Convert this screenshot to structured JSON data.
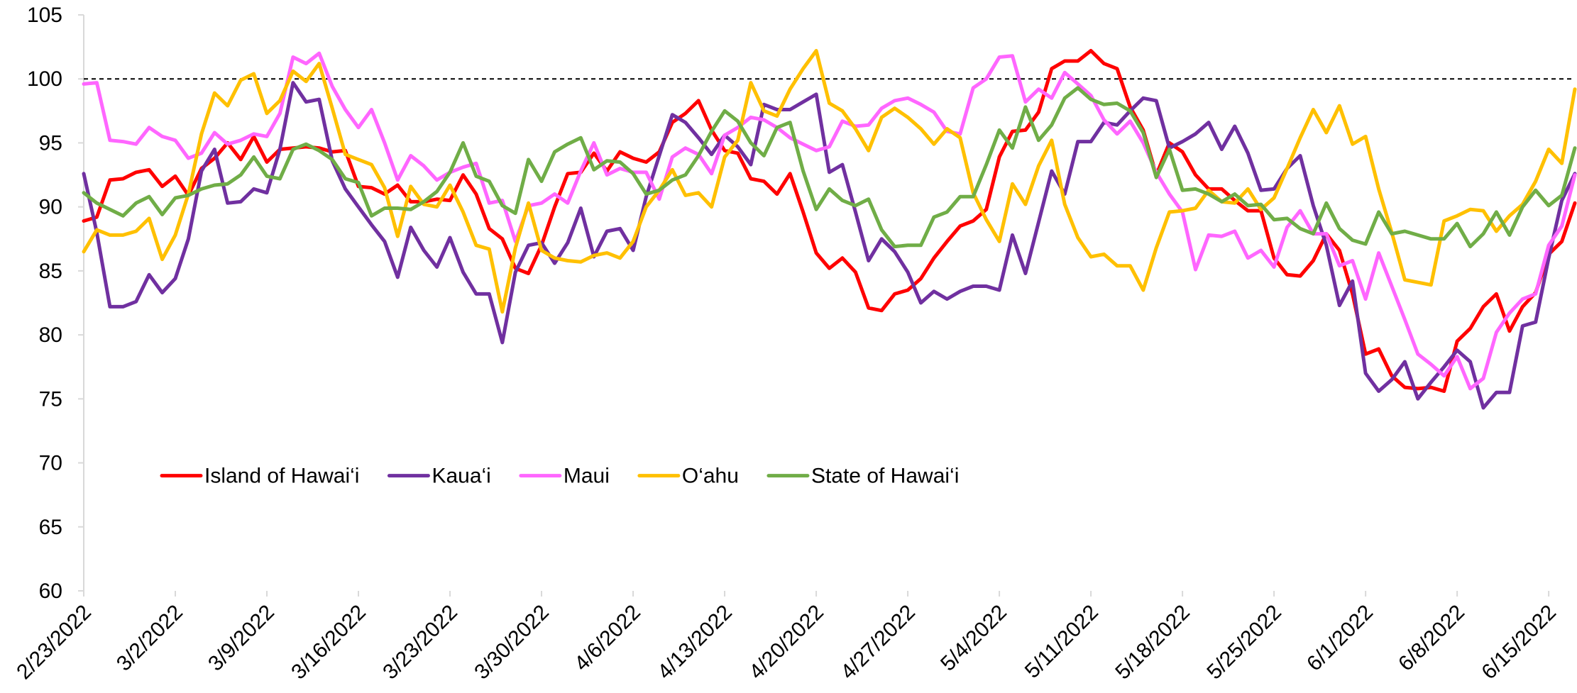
{
  "chart_data": {
    "type": "line",
    "categories": [
      "2/23/2022",
      null,
      null,
      null,
      null,
      null,
      null,
      "3/2/2022",
      null,
      null,
      null,
      null,
      null,
      null,
      "3/9/2022",
      null,
      null,
      null,
      null,
      null,
      null,
      "3/16/2022",
      null,
      null,
      null,
      null,
      null,
      null,
      "3/23/2022",
      null,
      null,
      null,
      null,
      null,
      null,
      "3/30/2022",
      null,
      null,
      null,
      null,
      null,
      null,
      "4/6/2022",
      null,
      null,
      null,
      null,
      null,
      null,
      "4/13/2022",
      null,
      null,
      null,
      null,
      null,
      null,
      "4/20/2022",
      null,
      null,
      null,
      null,
      null,
      null,
      "4/27/2022",
      null,
      null,
      null,
      null,
      null,
      null,
      "5/4/2022",
      null,
      null,
      null,
      null,
      null,
      null,
      "5/11/2022",
      null,
      null,
      null,
      null,
      null,
      null,
      "5/18/2022",
      null,
      null,
      null,
      null,
      null,
      null,
      "5/25/2022",
      null,
      null,
      null,
      null,
      null,
      null,
      "6/1/2022",
      null,
      null,
      null,
      null,
      null,
      null,
      "6/8/2022",
      null,
      null,
      null,
      null,
      null,
      null,
      "6/15/2022",
      null,
      null
    ],
    "series": [
      {
        "name": "Island of Hawai‘i",
        "color": "#ff0000",
        "values": [
          88.9,
          89.2,
          92.1,
          92.2,
          92.7,
          92.9,
          91.6,
          92.4,
          90.9,
          93.0,
          93.8,
          95.0,
          93.7,
          95.5,
          93.5,
          94.5,
          94.6,
          94.7,
          94.6,
          94.3,
          94.4,
          91.6,
          91.5,
          91.0,
          91.7,
          90.4,
          90.4,
          90.6,
          90.5,
          92.5,
          91.0,
          88.3,
          87.5,
          85.2,
          84.8,
          87.0,
          90.0,
          92.6,
          92.7,
          94.2,
          92.8,
          94.3,
          93.8,
          93.5,
          94.3,
          96.6,
          97.3,
          98.3,
          96.0,
          94.4,
          94.2,
          92.2,
          92.0,
          91.0,
          92.6,
          89.6,
          86.4,
          85.2,
          86.0,
          84.9,
          82.1,
          81.9,
          83.2,
          83.5,
          84.4,
          86.0,
          87.3,
          88.5,
          88.9,
          89.8,
          93.9,
          95.9,
          96.0,
          97.4,
          100.8,
          101.4,
          101.4,
          102.2,
          101.2,
          100.8,
          97.8,
          96.0,
          92.5,
          95.0,
          94.3,
          92.5,
          91.4,
          91.4,
          90.5,
          89.7,
          89.7,
          86.0,
          84.7,
          84.6,
          85.8,
          87.9,
          86.6,
          83.2,
          78.5,
          78.9,
          76.8,
          75.9,
          75.8,
          75.9,
          75.6,
          79.5,
          80.5,
          82.2,
          83.2,
          80.3,
          82.2,
          83.3,
          86.3,
          87.3,
          90.3
        ]
      },
      {
        "name": "Kaua‘i",
        "color": "#7030a0",
        "values": [
          92.6,
          88.0,
          82.2,
          82.2,
          82.6,
          84.7,
          83.3,
          84.4,
          87.5,
          92.8,
          94.5,
          90.3,
          90.4,
          91.4,
          91.1,
          94.5,
          99.7,
          98.2,
          98.4,
          93.6,
          91.4,
          90.0,
          88.6,
          87.3,
          84.5,
          88.4,
          86.6,
          85.3,
          87.6,
          84.9,
          83.2,
          83.2,
          79.4,
          84.9,
          87.0,
          87.2,
          85.6,
          87.2,
          89.9,
          86.1,
          88.1,
          88.3,
          86.6,
          90.8,
          94.0,
          97.2,
          96.6,
          95.4,
          94.1,
          95.6,
          94.7,
          93.3,
          98.0,
          97.6,
          97.6,
          98.2,
          98.8,
          92.7,
          93.3,
          89.6,
          85.8,
          87.5,
          86.5,
          84.9,
          82.5,
          83.4,
          82.8,
          83.4,
          83.8,
          83.8,
          83.5,
          87.8,
          84.8,
          88.8,
          92.8,
          91.0,
          95.1,
          95.1,
          96.6,
          96.4,
          97.5,
          98.5,
          98.3,
          94.6,
          95.1,
          95.7,
          96.6,
          94.5,
          96.3,
          94.2,
          91.3,
          91.4,
          93.0,
          94.0,
          90.1,
          87.0,
          82.3,
          84.2,
          77.0,
          75.6,
          76.5,
          77.9,
          75.0,
          76.3,
          77.5,
          78.8,
          77.9,
          74.3,
          75.5,
          75.5,
          80.7,
          81.0,
          86.0,
          90.5,
          92.6
        ]
      },
      {
        "name": "Maui",
        "color": "#ff66ff",
        "values": [
          99.6,
          99.7,
          95.2,
          95.1,
          94.9,
          96.2,
          95.5,
          95.2,
          93.8,
          94.2,
          95.8,
          94.9,
          95.2,
          95.7,
          95.5,
          97.3,
          101.7,
          101.2,
          102.0,
          99.4,
          97.6,
          96.2,
          97.6,
          95.0,
          92.1,
          94.0,
          93.2,
          92.1,
          92.7,
          93.1,
          93.4,
          90.3,
          90.5,
          87.3,
          90.1,
          90.3,
          91.0,
          90.3,
          92.8,
          95.0,
          92.5,
          93.0,
          92.7,
          92.7,
          90.6,
          93.9,
          94.6,
          94.1,
          92.6,
          95.6,
          96.2,
          97.0,
          96.8,
          96.2,
          95.4,
          94.9,
          94.4,
          94.7,
          96.7,
          96.3,
          96.4,
          97.7,
          98.3,
          98.5,
          98.0,
          97.4,
          95.9,
          95.7,
          99.3,
          100.0,
          101.7,
          101.8,
          98.2,
          99.2,
          98.5,
          100.5,
          99.6,
          98.7,
          96.8,
          95.7,
          96.7,
          95.0,
          92.7,
          91.0,
          89.6,
          85.1,
          87.8,
          87.7,
          88.1,
          86.0,
          86.6,
          85.3,
          88.4,
          89.7,
          87.9,
          87.9,
          85.4,
          85.8,
          82.8,
          86.4,
          83.8,
          81.2,
          78.5,
          77.7,
          76.8,
          78.3,
          75.8,
          76.6,
          80.2,
          81.7,
          82.8,
          83.2,
          87.0,
          88.5,
          92.5
        ]
      },
      {
        "name": "O‘ahu",
        "color": "#ffc000",
        "values": [
          86.5,
          88.2,
          87.8,
          87.8,
          88.1,
          89.1,
          85.9,
          87.8,
          91.0,
          95.7,
          98.9,
          97.9,
          99.9,
          100.4,
          97.3,
          98.3,
          100.6,
          99.8,
          101.2,
          97.7,
          94.1,
          93.7,
          93.3,
          91.5,
          87.7,
          91.6,
          90.2,
          90.0,
          91.7,
          89.6,
          87.0,
          86.7,
          81.8,
          86.8,
          90.3,
          86.6,
          86.0,
          85.8,
          85.7,
          86.2,
          86.4,
          86.0,
          87.3,
          90.0,
          91.3,
          92.9,
          90.9,
          91.1,
          90.0,
          93.9,
          95.2,
          99.7,
          97.5,
          97.1,
          99.2,
          100.8,
          102.2,
          98.1,
          97.5,
          96.1,
          94.4,
          97.0,
          97.7,
          97.0,
          96.1,
          94.9,
          96.1,
          95.4,
          91.1,
          89.0,
          87.3,
          91.8,
          90.2,
          93.2,
          95.2,
          90.2,
          87.6,
          86.1,
          86.3,
          85.4,
          85.4,
          83.5,
          86.8,
          89.6,
          89.7,
          89.9,
          91.3,
          90.4,
          90.3,
          91.4,
          89.8,
          90.7,
          93.0,
          95.4,
          97.6,
          95.8,
          97.9,
          94.9,
          95.5,
          91.4,
          88.0,
          84.3,
          84.1,
          83.9,
          88.9,
          89.3,
          89.8,
          89.7,
          88.1,
          89.3,
          90.2,
          92.0,
          94.5,
          93.4,
          99.2
        ]
      },
      {
        "name": "State of Hawai‘i",
        "color": "#70ad47",
        "values": [
          91.1,
          90.3,
          89.8,
          89.3,
          90.3,
          90.8,
          89.4,
          90.7,
          90.9,
          91.4,
          91.7,
          91.8,
          92.5,
          93.9,
          92.4,
          92.2,
          94.5,
          94.9,
          94.4,
          93.7,
          92.2,
          91.9,
          89.3,
          89.9,
          89.9,
          89.8,
          90.4,
          91.2,
          92.7,
          95.0,
          92.4,
          92.0,
          90.1,
          89.5,
          93.7,
          92.0,
          94.3,
          94.9,
          95.4,
          92.9,
          93.6,
          93.5,
          92.6,
          91.0,
          91.3,
          92.1,
          92.5,
          94.0,
          95.9,
          97.5,
          96.7,
          95.0,
          94.0,
          96.2,
          96.6,
          92.8,
          89.8,
          91.4,
          90.5,
          90.1,
          90.6,
          88.2,
          86.9,
          87.0,
          87.0,
          89.2,
          89.6,
          90.8,
          90.8,
          93.3,
          96.0,
          94.6,
          97.8,
          95.2,
          96.4,
          98.5,
          99.3,
          98.4,
          98.0,
          98.1,
          97.5,
          95.8,
          92.3,
          94.5,
          91.3,
          91.4,
          91.0,
          90.4,
          91.0,
          90.1,
          90.2,
          89.0,
          89.1,
          88.3,
          87.9,
          90.3,
          88.3,
          87.4,
          87.1,
          89.6,
          87.9,
          88.1,
          87.8,
          87.5,
          87.5,
          88.7,
          86.9,
          87.9,
          89.6,
          87.8,
          90.0,
          91.3,
          90.1,
          90.9,
          94.6
        ]
      }
    ],
    "ylim": [
      60,
      105
    ],
    "yticks": [
      60,
      65,
      70,
      75,
      80,
      85,
      90,
      95,
      100,
      105
    ],
    "reference_line": 100,
    "legend": "lower-left"
  }
}
